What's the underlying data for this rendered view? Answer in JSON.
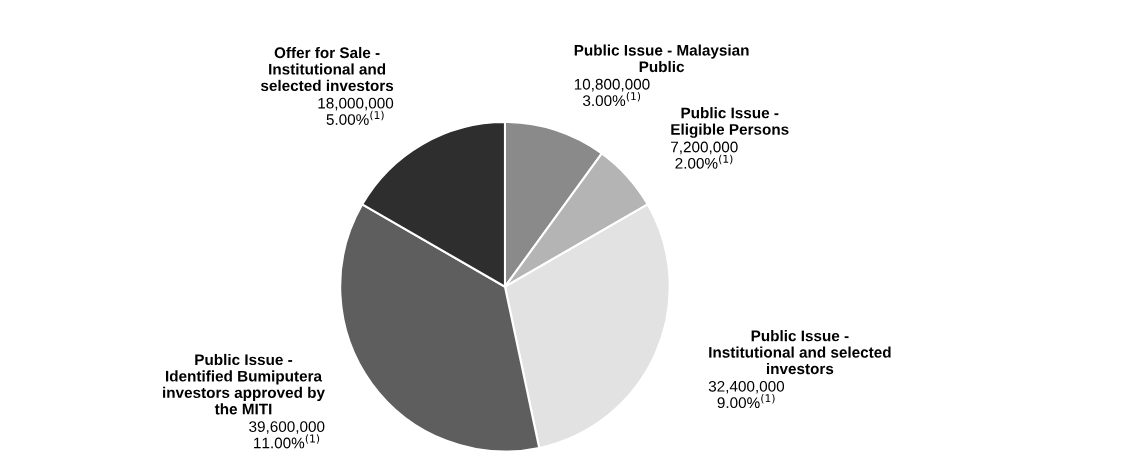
{
  "chart_data": {
    "type": "pie",
    "categories": [
      "Public Issue - Malaysian\nPublic",
      "Public Issue -\nEligible Persons",
      "Public Issue -\nInstitutional and selected\ninvestors",
      "Public Issue -\nIdentified Bumiputera\ninvestors approved by\nthe MITI",
      "Offer for Sale -\nInstitutional and\nselected investors"
    ],
    "values": [
      10800000,
      7200000,
      32400000,
      39600000,
      18000000
    ],
    "colors": [
      "#8a8a8a",
      "#b4b4b4",
      "#e2e2e2",
      "#5e5e5e",
      "#2e2e2e"
    ],
    "value_labels": [
      "10,800,000\n3.00%$^{(1)}$",
      "7,200,000\n2.00%$^{(1)}$",
      "32,400,000\n9.00%$^{(1)}$",
      "39,600,000\n11.00%$^{(1)}$",
      "18,000,000\n5.00%$^{(1)}$"
    ]
  }
}
